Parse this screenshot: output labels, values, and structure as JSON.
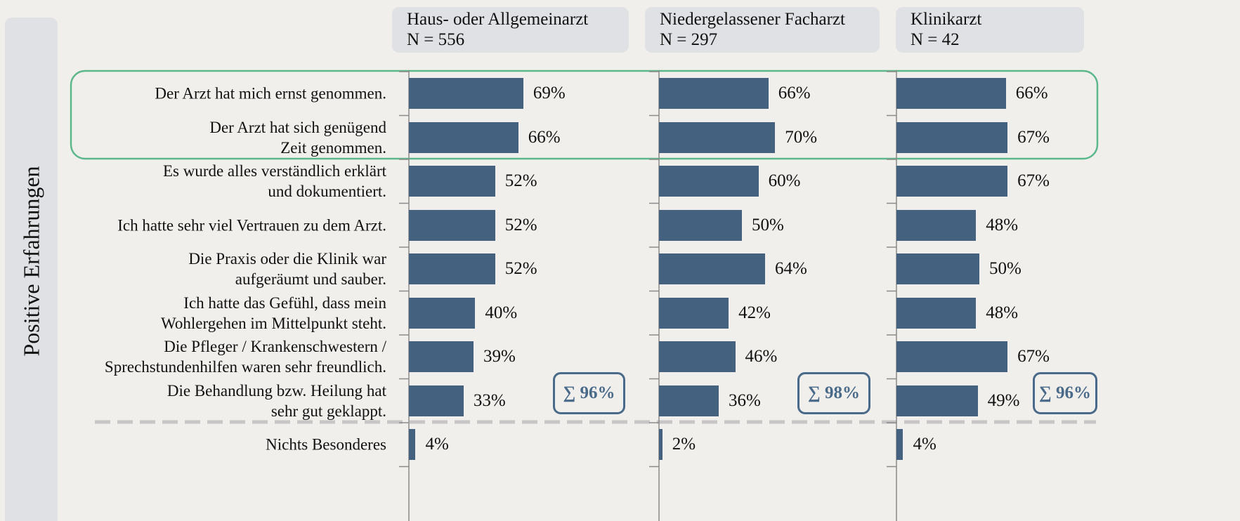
{
  "chart_data": {
    "type": "bar",
    "ylabel": "Positive Erfahrungen",
    "categories": [
      "Der Arzt hat mich ernst genommen.",
      "Der Arzt hat sich genügend\nZeit genommen.",
      "Es wurde alles verständlich erklärt\nund dokumentiert.",
      "Ich hatte sehr viel Vertrauen zu dem Arzt.",
      "Die Praxis oder die Klinik war\naufgeräumt und sauber.",
      "Ich hatte das Gefühl, dass mein\nWohlergehen im Mittelpunkt steht.",
      "Die Pfleger / Krankenschwestern /\nSprechstundenhilfen waren sehr freundlich.",
      "Die Behandlung bzw. Heilung hat\nsehr gut geklappt.",
      "Nichts Besonderes"
    ],
    "xlim": [
      0,
      100
    ],
    "color": "#44617f",
    "panels": [
      {
        "title": "Haus- oder Allgemeinarzt",
        "subtitle": "N = 556",
        "values": [
          69,
          66,
          52,
          52,
          52,
          40,
          39,
          33,
          4
        ],
        "value_labels": [
          "69%",
          "66%",
          "52%",
          "52%",
          "52%",
          "40%",
          "39%",
          "33%",
          "4%"
        ],
        "annotation": "∑ 96%"
      },
      {
        "title": "Niedergelassener Facharzt",
        "subtitle": "N = 297",
        "values": [
          66,
          70,
          60,
          50,
          64,
          42,
          46,
          36,
          2
        ],
        "value_labels": [
          "66%",
          "70%",
          "60%",
          "50%",
          "64%",
          "42%",
          "46%",
          "36%",
          "2%"
        ],
        "annotation": "∑ 98%"
      },
      {
        "title": "Klinikarzt",
        "subtitle": "N = 42",
        "values": [
          66,
          67,
          67,
          48,
          50,
          48,
          67,
          49,
          4
        ],
        "value_labels": [
          "66%",
          "67%",
          "67%",
          "48%",
          "50%",
          "48%",
          "67%",
          "49%",
          "4%"
        ],
        "annotation": "∑ 96%"
      }
    ]
  }
}
